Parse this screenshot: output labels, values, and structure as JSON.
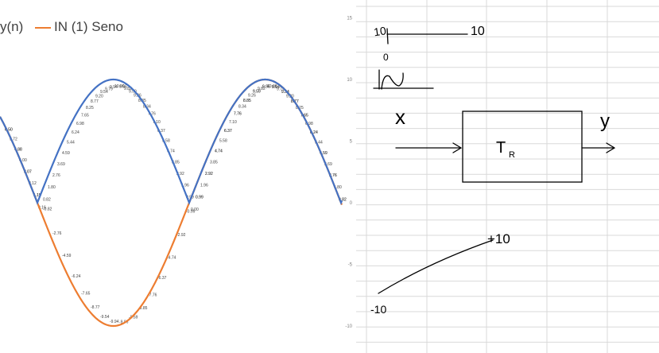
{
  "legend": {
    "left_label": "y(n)",
    "right_label": "IN (1) Seno"
  },
  "colors": {
    "blue": "#4472c4",
    "orange": "#ed7d31",
    "grid": "#d9d9d9",
    "ink": "#000000"
  },
  "chart_data": {
    "type": "line",
    "series": [
      {
        "name": "y(n)",
        "description": "rectified sine",
        "color": "#4472c4"
      },
      {
        "name": "IN (1) Seno",
        "color": "#ed7d31"
      }
    ],
    "y_ticks": [
      "15",
      "10",
      "5",
      "0",
      "-5",
      "-10"
    ],
    "data_labels_desc": [
      "10",
      "9.95",
      "9.8",
      "9.56",
      "9.21",
      "8.78",
      "8.25",
      "7.65",
      "6.98",
      "6.24",
      "5.45",
      "4.61",
      "3.74",
      "2.84",
      "1.9",
      "0.95",
      "0.00",
      "-0.95",
      "-1.9",
      "-2.84",
      "-3.74",
      "-4.61",
      "-5.45",
      "-6.24",
      "-6.98",
      "-7.65",
      "-8.25",
      "-8.78",
      "-9.21",
      "-9.56",
      "-9.8",
      "-9.95",
      "-10"
    ],
    "grid": true
  },
  "notes": {
    "top_left": "10",
    "top_right": "10",
    "below": "0",
    "x_label": "x",
    "y_label": "y",
    "block_label": "T",
    "block_sub": "R",
    "plus": "+10",
    "minus": "-10"
  }
}
